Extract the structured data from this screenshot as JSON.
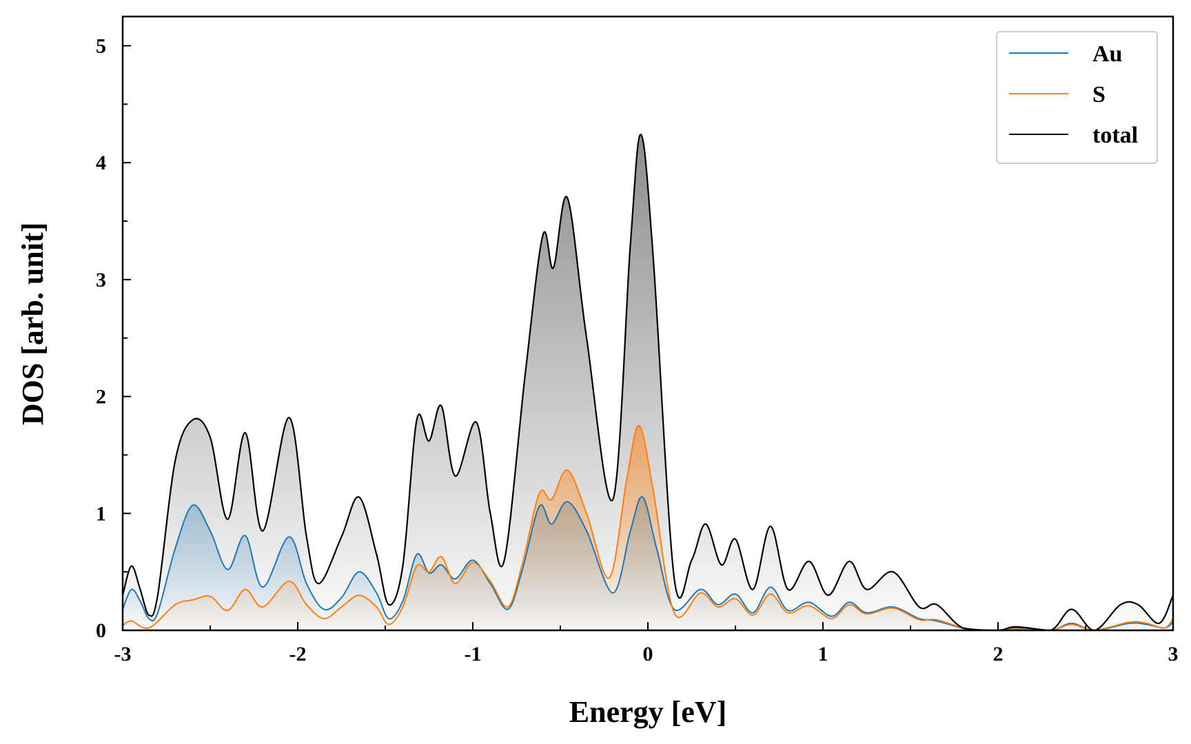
{
  "chart_data": {
    "type": "area",
    "title": "",
    "xlabel": "Energy [eV]",
    "ylabel": "DOS [arb. unit]",
    "xlim": [
      -3,
      3
    ],
    "ylim": [
      0,
      5.25
    ],
    "x_ticks": [
      "-3",
      "-2",
      "-1",
      "0",
      "1",
      "2",
      "3"
    ],
    "y_ticks": [
      "0",
      "1",
      "2",
      "3",
      "4",
      "5"
    ],
    "grid": false,
    "legend_position": "top-right",
    "series": [
      {
        "name": "Au",
        "color": "#1f77b4",
        "fill": true,
        "points": [
          [
            -3.0,
            0.18
          ],
          [
            -2.95,
            0.35
          ],
          [
            -2.9,
            0.25
          ],
          [
            -2.85,
            0.1
          ],
          [
            -2.8,
            0.15
          ],
          [
            -2.7,
            0.7
          ],
          [
            -2.6,
            1.07
          ],
          [
            -2.5,
            0.85
          ],
          [
            -2.4,
            0.52
          ],
          [
            -2.3,
            0.81
          ],
          [
            -2.2,
            0.37
          ],
          [
            -2.05,
            0.8
          ],
          [
            -1.95,
            0.4
          ],
          [
            -1.85,
            0.18
          ],
          [
            -1.75,
            0.28
          ],
          [
            -1.65,
            0.5
          ],
          [
            -1.55,
            0.32
          ],
          [
            -1.48,
            0.1
          ],
          [
            -1.4,
            0.25
          ],
          [
            -1.32,
            0.65
          ],
          [
            -1.25,
            0.49
          ],
          [
            -1.18,
            0.56
          ],
          [
            -1.1,
            0.44
          ],
          [
            -1.0,
            0.6
          ],
          [
            -0.9,
            0.4
          ],
          [
            -0.8,
            0.18
          ],
          [
            -0.72,
            0.5
          ],
          [
            -0.62,
            1.06
          ],
          [
            -0.55,
            0.91
          ],
          [
            -0.46,
            1.1
          ],
          [
            -0.35,
            0.85
          ],
          [
            -0.2,
            0.32
          ],
          [
            -0.1,
            0.85
          ],
          [
            -0.03,
            1.14
          ],
          [
            0.05,
            0.7
          ],
          [
            0.15,
            0.18
          ],
          [
            0.3,
            0.35
          ],
          [
            0.4,
            0.22
          ],
          [
            0.5,
            0.31
          ],
          [
            0.6,
            0.15
          ],
          [
            0.7,
            0.37
          ],
          [
            0.8,
            0.17
          ],
          [
            0.92,
            0.24
          ],
          [
            1.05,
            0.12
          ],
          [
            1.15,
            0.24
          ],
          [
            1.25,
            0.15
          ],
          [
            1.4,
            0.2
          ],
          [
            1.55,
            0.1
          ],
          [
            1.65,
            0.08
          ],
          [
            1.85,
            0.0
          ],
          [
            2.0,
            0.0
          ],
          [
            2.1,
            0.02
          ],
          [
            2.3,
            0.0
          ],
          [
            2.42,
            0.06
          ],
          [
            2.55,
            0.0
          ],
          [
            2.75,
            0.06
          ],
          [
            2.85,
            0.05
          ],
          [
            2.95,
            0.02
          ],
          [
            3.0,
            0.07
          ]
        ]
      },
      {
        "name": "S",
        "color": "#ff7f0e",
        "fill": true,
        "points": [
          [
            -3.0,
            0.04
          ],
          [
            -2.95,
            0.08
          ],
          [
            -2.85,
            0.02
          ],
          [
            -2.7,
            0.22
          ],
          [
            -2.6,
            0.26
          ],
          [
            -2.5,
            0.29
          ],
          [
            -2.4,
            0.17
          ],
          [
            -2.3,
            0.35
          ],
          [
            -2.2,
            0.2
          ],
          [
            -2.05,
            0.42
          ],
          [
            -1.95,
            0.22
          ],
          [
            -1.85,
            0.1
          ],
          [
            -1.75,
            0.2
          ],
          [
            -1.65,
            0.3
          ],
          [
            -1.55,
            0.2
          ],
          [
            -1.48,
            0.05
          ],
          [
            -1.4,
            0.2
          ],
          [
            -1.32,
            0.55
          ],
          [
            -1.25,
            0.5
          ],
          [
            -1.18,
            0.63
          ],
          [
            -1.1,
            0.4
          ],
          [
            -1.0,
            0.58
          ],
          [
            -0.9,
            0.42
          ],
          [
            -0.8,
            0.2
          ],
          [
            -0.72,
            0.55
          ],
          [
            -0.62,
            1.17
          ],
          [
            -0.55,
            1.12
          ],
          [
            -0.46,
            1.37
          ],
          [
            -0.35,
            1.0
          ],
          [
            -0.22,
            0.45
          ],
          [
            -0.12,
            1.3
          ],
          [
            -0.05,
            1.75
          ],
          [
            0.03,
            1.2
          ],
          [
            0.15,
            0.15
          ],
          [
            0.3,
            0.32
          ],
          [
            0.4,
            0.2
          ],
          [
            0.5,
            0.27
          ],
          [
            0.6,
            0.13
          ],
          [
            0.7,
            0.31
          ],
          [
            0.8,
            0.15
          ],
          [
            0.92,
            0.21
          ],
          [
            1.05,
            0.1
          ],
          [
            1.15,
            0.22
          ],
          [
            1.25,
            0.14
          ],
          [
            1.4,
            0.19
          ],
          [
            1.55,
            0.09
          ],
          [
            1.65,
            0.09
          ],
          [
            1.85,
            0.0
          ],
          [
            2.0,
            0.0
          ],
          [
            2.1,
            0.01
          ],
          [
            2.3,
            0.0
          ],
          [
            2.42,
            0.05
          ],
          [
            2.55,
            0.0
          ],
          [
            2.75,
            0.07
          ],
          [
            2.85,
            0.06
          ],
          [
            2.95,
            0.02
          ],
          [
            3.0,
            0.1
          ]
        ]
      },
      {
        "name": "total",
        "color": "#000000",
        "fill": true,
        "points": [
          [
            -3.0,
            0.3
          ],
          [
            -2.95,
            0.55
          ],
          [
            -2.9,
            0.35
          ],
          [
            -2.85,
            0.13
          ],
          [
            -2.8,
            0.3
          ],
          [
            -2.7,
            1.45
          ],
          [
            -2.6,
            1.8
          ],
          [
            -2.5,
            1.65
          ],
          [
            -2.4,
            0.95
          ],
          [
            -2.3,
            1.69
          ],
          [
            -2.2,
            0.85
          ],
          [
            -2.05,
            1.82
          ],
          [
            -1.95,
            0.8
          ],
          [
            -1.88,
            0.4
          ],
          [
            -1.75,
            0.8
          ],
          [
            -1.65,
            1.14
          ],
          [
            -1.55,
            0.65
          ],
          [
            -1.48,
            0.22
          ],
          [
            -1.4,
            0.55
          ],
          [
            -1.32,
            1.8
          ],
          [
            -1.25,
            1.62
          ],
          [
            -1.18,
            1.92
          ],
          [
            -1.1,
            1.32
          ],
          [
            -0.98,
            1.78
          ],
          [
            -0.9,
            1.0
          ],
          [
            -0.82,
            0.6
          ],
          [
            -0.7,
            2.2
          ],
          [
            -0.6,
            3.38
          ],
          [
            -0.54,
            3.1
          ],
          [
            -0.46,
            3.7
          ],
          [
            -0.35,
            2.5
          ],
          [
            -0.2,
            1.12
          ],
          [
            -0.1,
            3.3
          ],
          [
            -0.04,
            4.24
          ],
          [
            0.03,
            3.2
          ],
          [
            0.15,
            0.45
          ],
          [
            0.25,
            0.6
          ],
          [
            0.33,
            0.91
          ],
          [
            0.42,
            0.56
          ],
          [
            0.5,
            0.78
          ],
          [
            0.6,
            0.35
          ],
          [
            0.7,
            0.89
          ],
          [
            0.8,
            0.35
          ],
          [
            0.92,
            0.59
          ],
          [
            1.03,
            0.3
          ],
          [
            1.15,
            0.59
          ],
          [
            1.25,
            0.35
          ],
          [
            1.4,
            0.5
          ],
          [
            1.55,
            0.2
          ],
          [
            1.65,
            0.22
          ],
          [
            1.8,
            0.02
          ],
          [
            2.0,
            0.0
          ],
          [
            2.1,
            0.03
          ],
          [
            2.3,
            0.0
          ],
          [
            2.42,
            0.18
          ],
          [
            2.55,
            0.0
          ],
          [
            2.7,
            0.22
          ],
          [
            2.8,
            0.22
          ],
          [
            2.92,
            0.06
          ],
          [
            3.0,
            0.3
          ]
        ]
      }
    ]
  }
}
